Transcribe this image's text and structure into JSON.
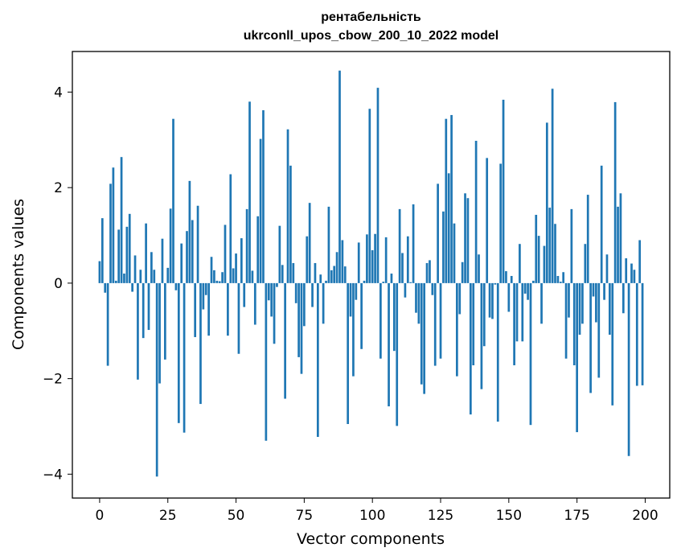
{
  "chart_data": {
    "type": "bar",
    "title": "рентабельність",
    "subtitle": "ukrconll_upos_cbow_200_10_2022 model",
    "xlabel": "Vector components",
    "ylabel": "Components values",
    "xlim": [
      -10,
      209
    ],
    "ylim": [
      -4.5,
      4.85
    ],
    "xticks": [
      0,
      25,
      50,
      75,
      100,
      125,
      150,
      175,
      200
    ],
    "yticks": [
      -4,
      -2,
      0,
      2,
      4
    ],
    "ytick_labels": [
      "−4",
      "−2",
      "0",
      "2",
      "4"
    ],
    "grid": false,
    "bar_color": "#1f77b4",
    "x": [
      0,
      1,
      2,
      3,
      4,
      5,
      6,
      7,
      8,
      9,
      10,
      11,
      12,
      13,
      14,
      15,
      16,
      17,
      18,
      19,
      20,
      21,
      22,
      23,
      24,
      25,
      26,
      27,
      28,
      29,
      30,
      31,
      32,
      33,
      34,
      35,
      36,
      37,
      38,
      39,
      40,
      41,
      42,
      43,
      44,
      45,
      46,
      47,
      48,
      49,
      50,
      51,
      52,
      53,
      54,
      55,
      56,
      57,
      58,
      59,
      60,
      61,
      62,
      63,
      64,
      65,
      66,
      67,
      68,
      69,
      70,
      71,
      72,
      73,
      74,
      75,
      76,
      77,
      78,
      79,
      80,
      81,
      82,
      83,
      84,
      85,
      86,
      87,
      88,
      89,
      90,
      91,
      92,
      93,
      94,
      95,
      96,
      97,
      98,
      99,
      100,
      101,
      102,
      103,
      104,
      105,
      106,
      107,
      108,
      109,
      110,
      111,
      112,
      113,
      114,
      115,
      116,
      117,
      118,
      119,
      120,
      121,
      122,
      123,
      124,
      125,
      126,
      127,
      128,
      129,
      130,
      131,
      132,
      133,
      134,
      135,
      136,
      137,
      138,
      139,
      140,
      141,
      142,
      143,
      144,
      145,
      146,
      147,
      148,
      149,
      150,
      151,
      152,
      153,
      154,
      155,
      156,
      157,
      158,
      159,
      160,
      161,
      162,
      163,
      164,
      165,
      166,
      167,
      168,
      169,
      170,
      171,
      172,
      173,
      174,
      175,
      176,
      177,
      178,
      179,
      180,
      181,
      182,
      183,
      184,
      185,
      186,
      187,
      188,
      189,
      190,
      191,
      192,
      193,
      194,
      195,
      196,
      197,
      198,
      199
    ],
    "values": [
      0.46,
      1.36,
      -0.2,
      -1.73,
      2.08,
      2.42,
      0.05,
      1.12,
      2.64,
      0.2,
      1.18,
      1.45,
      -0.18,
      0.58,
      -2.02,
      0.28,
      -1.15,
      1.25,
      -0.98,
      0.65,
      0.28,
      -4.05,
      -2.1,
      0.93,
      -1.6,
      0.32,
      1.56,
      3.44,
      -0.15,
      -2.93,
      0.83,
      -3.13,
      1.09,
      2.14,
      1.32,
      -1.13,
      1.62,
      -2.53,
      -0.55,
      -0.25,
      -1.1,
      0.55,
      0.27,
      0.05,
      0.04,
      0.23,
      1.22,
      -1.1,
      2.28,
      0.31,
      0.62,
      -1.48,
      0.94,
      -0.5,
      1.55,
      3.8,
      0.26,
      -0.87,
      1.4,
      3.02,
      3.62,
      -3.3,
      -0.36,
      -0.7,
      -1.27,
      -0.08,
      1.2,
      0.38,
      -2.42,
      3.22,
      2.46,
      0.42,
      -0.42,
      -1.55,
      -1.9,
      -0.9,
      0.98,
      1.68,
      -0.5,
      0.42,
      -3.22,
      0.18,
      -0.85,
      0.05,
      1.6,
      0.27,
      0.36,
      0.65,
      4.45,
      0.9,
      0.35,
      -2.95,
      -0.7,
      -1.95,
      -0.35,
      0.85,
      -1.38,
      0.05,
      1.02,
      3.65,
      0.69,
      1.03,
      4.09,
      -1.58,
      0.03,
      0.96,
      -2.58,
      0.2,
      -1.42,
      -2.99,
      1.55,
      0.63,
      -0.3,
      0.98,
      0.02,
      1.65,
      -0.62,
      -0.85,
      -2.12,
      -2.32,
      0.42,
      0.48,
      -0.25,
      -1.73,
      2.08,
      -1.58,
      1.5,
      3.44,
      2.3,
      3.52,
      1.25,
      -1.95,
      -0.65,
      0.44,
      1.88,
      1.78,
      -2.75,
      -1.72,
      2.98,
      0.6,
      -2.22,
      -1.32,
      2.62,
      -0.72,
      -0.75,
      -0.03,
      -2.9,
      2.5,
      3.84,
      0.25,
      -0.6,
      0.15,
      -1.72,
      -1.22,
      0.82,
      -1.22,
      -0.22,
      -0.35,
      -2.97,
      0.05,
      1.43,
      0.99,
      -0.85,
      0.78,
      3.36,
      1.58,
      4.07,
      1.24,
      0.15,
      0.03,
      0.23,
      -1.58,
      -0.72,
      1.55,
      -1.72,
      -3.12,
      -1.08,
      -0.85,
      0.82,
      1.85,
      -2.3,
      -0.28,
      -0.82,
      -1.98,
      2.46,
      -0.35,
      0.6,
      -1.08,
      -2.56,
      3.79,
      1.6,
      1.88,
      -0.63,
      0.52,
      -3.62,
      0.41,
      0.28,
      -2.15,
      0.9,
      -2.14
    ]
  }
}
